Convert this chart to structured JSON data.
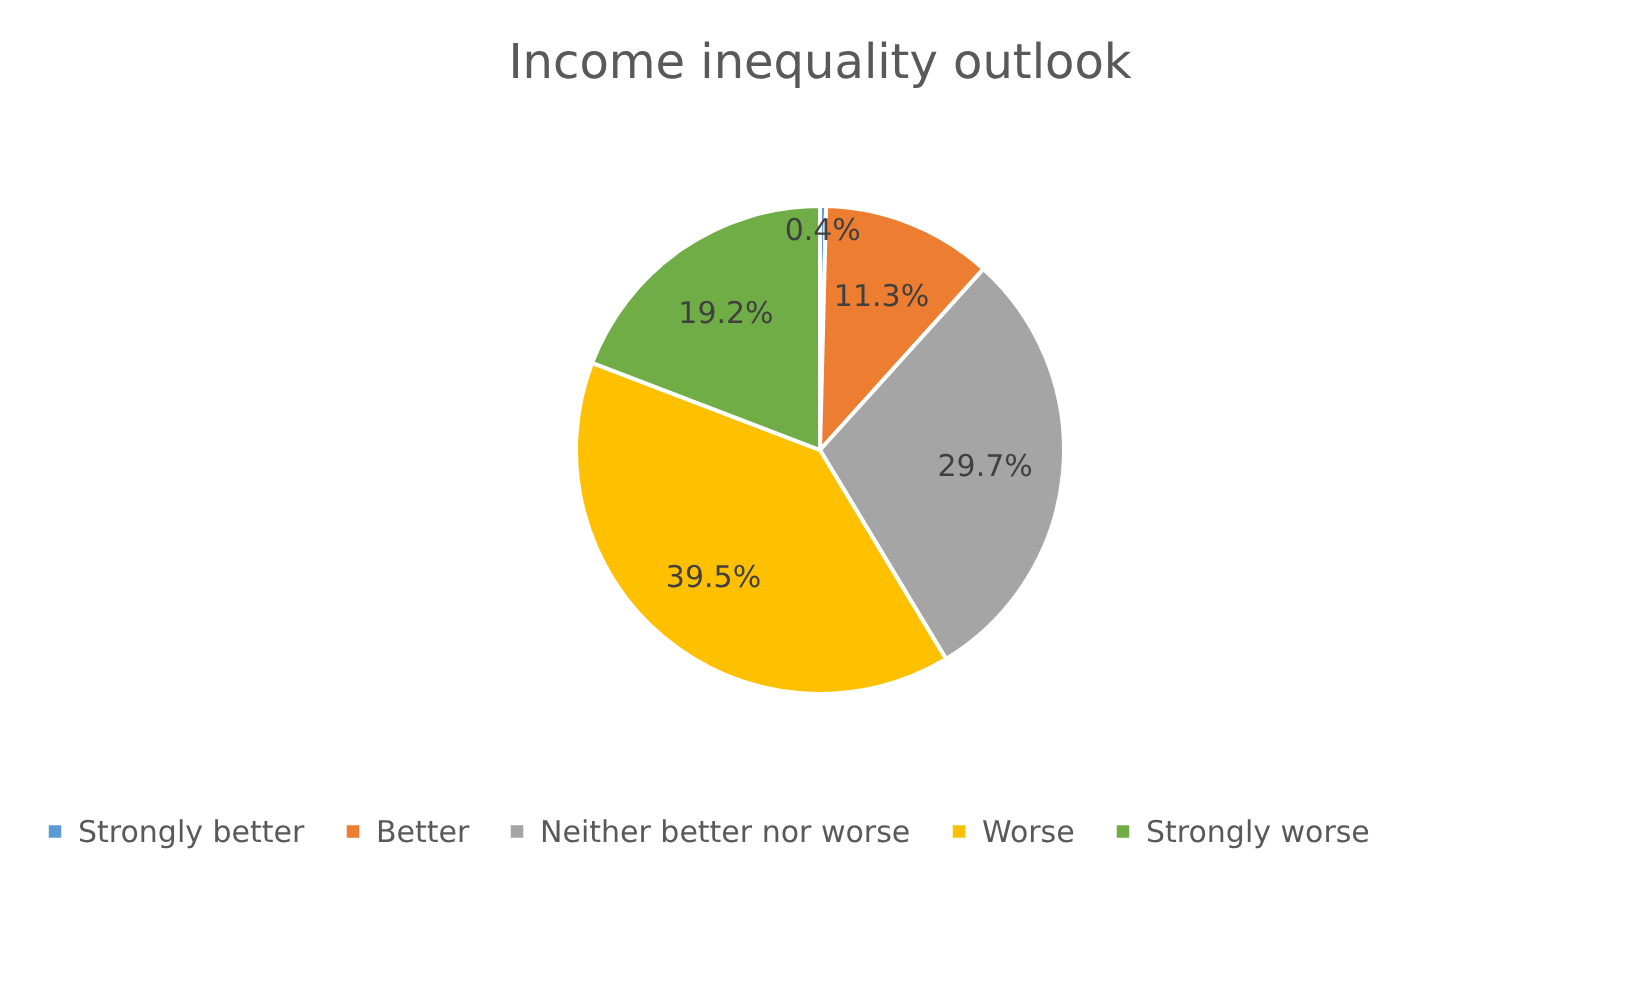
{
  "chart_data": {
    "type": "pie",
    "title": "Income inequality outlook",
    "categories": [
      "Strongly better",
      "Better",
      "Neither better nor worse",
      "Worse",
      "Strongly worse"
    ],
    "values": [
      0.4,
      11.3,
      29.7,
      39.5,
      19.2
    ],
    "colors": [
      "#5b9bd5",
      "#ed7d31",
      "#a5a5a5",
      "#ffc000",
      "#70ad47"
    ],
    "value_labels": [
      "0.4%",
      "11.3%",
      "29.7%",
      "39.5%",
      "19.2%"
    ],
    "legend": "bottom"
  }
}
